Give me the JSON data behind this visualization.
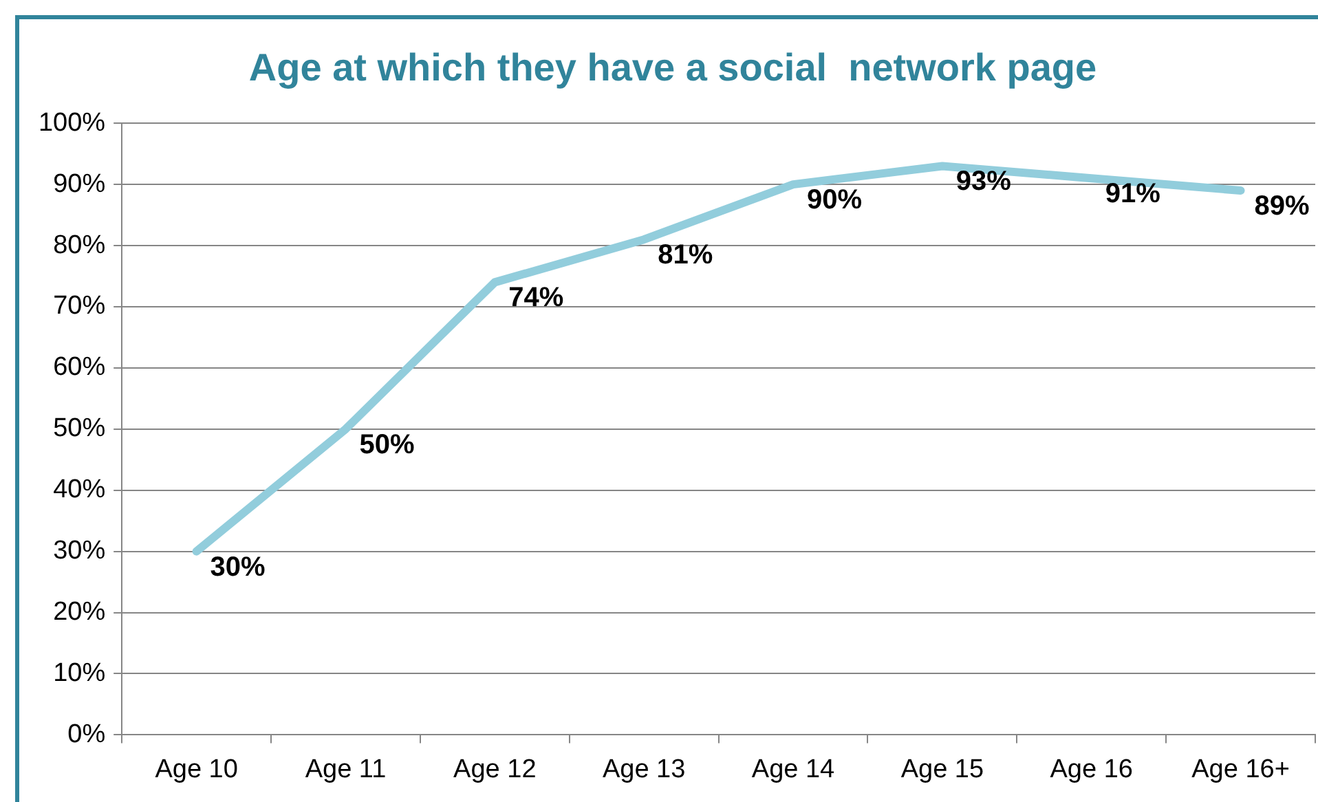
{
  "chart_data": {
    "type": "line",
    "title": "Age at which they have a social  network page",
    "categories": [
      "Age 10",
      "Age 11",
      "Age 12",
      "Age 13",
      "Age 14",
      "Age 15",
      "Age 16",
      "Age 16+"
    ],
    "series": [
      {
        "color": "#92cddc",
        "values": [
          30,
          50,
          74,
          81,
          90,
          93,
          91,
          89
        ],
        "value_labels": [
          "30%",
          "50%",
          "74%",
          "81%",
          "90%",
          "93%",
          "91%",
          "89%"
        ]
      }
    ],
    "ylim": [
      0,
      100
    ],
    "yticks": [
      {
        "value": 0,
        "label": "0%"
      },
      {
        "value": 10,
        "label": "10%"
      },
      {
        "value": 20,
        "label": "20%"
      },
      {
        "value": 30,
        "label": "30%"
      },
      {
        "value": 40,
        "label": "40%"
      },
      {
        "value": 50,
        "label": "50%"
      },
      {
        "value": 60,
        "label": "60%"
      },
      {
        "value": 70,
        "label": "70%"
      },
      {
        "value": 80,
        "label": "80%"
      },
      {
        "value": 90,
        "label": "90%"
      },
      {
        "value": 100,
        "label": "100%"
      }
    ],
    "grid": "y",
    "legend": false,
    "marker": "none",
    "line_style": "solid"
  }
}
